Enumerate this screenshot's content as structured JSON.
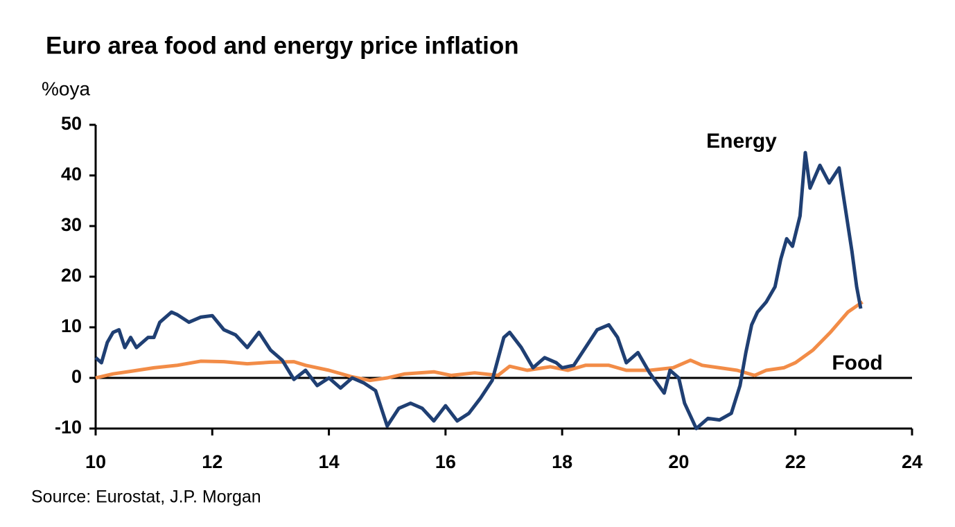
{
  "chart_data": {
    "type": "line",
    "title": "Euro area food and energy price inflation",
    "ylabel": "%oya",
    "source": "Source: Eurostat, J.P. Morgan",
    "xlim": [
      10,
      24
    ],
    "xticks": [
      10,
      12,
      14,
      16,
      18,
      20,
      22,
      24
    ],
    "ylim": [
      -10,
      50
    ],
    "yticks": [
      -10,
      0,
      10,
      20,
      30,
      40,
      50
    ],
    "series": [
      {
        "name": "Energy",
        "color": "#1f3f73",
        "x": [
          10.0,
          10.1,
          10.2,
          10.3,
          10.4,
          10.5,
          10.6,
          10.7,
          10.9,
          11.0,
          11.1,
          11.3,
          11.4,
          11.6,
          11.8,
          12.0,
          12.2,
          12.4,
          12.6,
          12.8,
          13.0,
          13.2,
          13.4,
          13.6,
          13.8,
          14.0,
          14.2,
          14.4,
          14.6,
          14.8,
          15.0,
          15.2,
          15.4,
          15.6,
          15.8,
          16.0,
          16.2,
          16.4,
          16.6,
          16.8,
          17.0,
          17.1,
          17.3,
          17.5,
          17.7,
          17.9,
          18.0,
          18.2,
          18.4,
          18.6,
          18.8,
          18.95,
          19.1,
          19.3,
          19.5,
          19.75,
          19.85,
          20.0,
          20.1,
          20.3,
          20.5,
          20.7,
          20.9,
          21.05,
          21.15,
          21.25,
          21.35,
          21.5,
          21.65,
          21.75,
          21.85,
          21.95,
          22.08,
          22.17,
          22.25,
          22.42,
          22.58,
          22.75,
          22.85,
          22.97,
          23.05,
          23.12
        ],
        "values": [
          4,
          3,
          7,
          9,
          9.5,
          6,
          8,
          6,
          8,
          8,
          11,
          13,
          12.5,
          11,
          12,
          12.3,
          9.5,
          8.5,
          6,
          9,
          5.5,
          3.5,
          -0.3,
          1.5,
          -1.5,
          0,
          -2,
          0,
          -1,
          -2.5,
          -9.5,
          -6,
          -5,
          -6,
          -8.5,
          -5.5,
          -8.5,
          -7,
          -4,
          -0.5,
          8,
          9,
          6,
          2,
          4,
          3,
          2,
          2.5,
          6,
          9.5,
          10.5,
          8,
          3,
          5,
          1,
          -3,
          1.5,
          0,
          -5,
          -10,
          -8,
          -8.3,
          -7,
          -1.5,
          5,
          10.5,
          13,
          15,
          18,
          23.5,
          27.5,
          26,
          32,
          44.5,
          37.5,
          42,
          38.5,
          41.5,
          34,
          25,
          18,
          13.7
        ]
      },
      {
        "name": "Food",
        "color": "#f28c47",
        "x": [
          10.0,
          10.3,
          10.6,
          11.0,
          11.4,
          11.8,
          12.2,
          12.6,
          13.0,
          13.4,
          13.6,
          14.0,
          14.4,
          14.7,
          15.0,
          15.3,
          15.8,
          16.1,
          16.5,
          16.9,
          17.1,
          17.4,
          17.8,
          18.1,
          18.4,
          18.8,
          19.1,
          19.5,
          19.9,
          20.2,
          20.4,
          20.7,
          21.0,
          21.3,
          21.5,
          21.8,
          22.0,
          22.3,
          22.6,
          22.9,
          23.15
        ],
        "values": [
          0,
          0.8,
          1.3,
          2,
          2.5,
          3.3,
          3.2,
          2.8,
          3.1,
          3.2,
          2.5,
          1.5,
          0.2,
          -0.5,
          0,
          0.8,
          1.2,
          0.5,
          1,
          0.5,
          2.3,
          1.5,
          2.2,
          1.5,
          2.5,
          2.5,
          1.5,
          1.5,
          2,
          3.5,
          2.5,
          2,
          1.5,
          0.5,
          1.5,
          2,
          3,
          5.5,
          9,
          13,
          15
        ]
      }
    ]
  }
}
